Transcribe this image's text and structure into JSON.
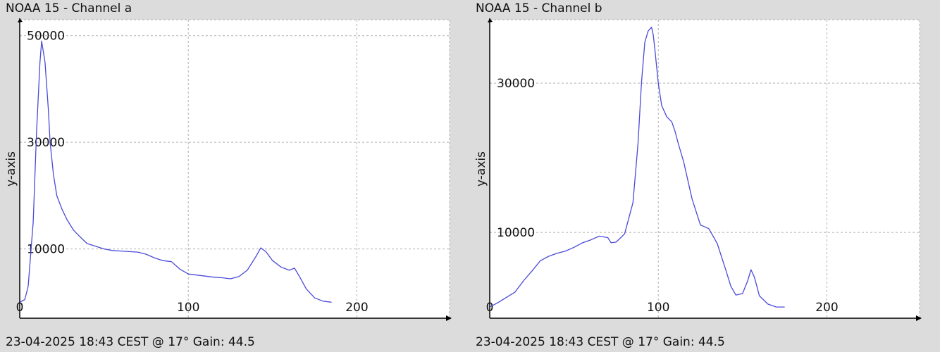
{
  "chart_data": [
    {
      "type": "line",
      "title": "NOAA 15 - Channel a",
      "footer": "23-04-2025 18:43 CEST @ 17° Gain: 44.5",
      "xlabel": "",
      "ylabel": "y-axis",
      "xlim": [
        0,
        255
      ],
      "ylim": [
        -3000,
        53000
      ],
      "grid": true,
      "line_color": "#4a4ad8",
      "xticks": [
        0,
        100,
        200
      ],
      "yticks": [
        10000,
        30000,
        50000
      ],
      "series": [
        {
          "x": [
            0,
            3,
            5,
            8,
            10,
            12,
            13,
            15,
            17,
            18,
            20,
            22,
            25,
            28,
            32,
            36,
            40,
            45,
            50,
            55,
            60,
            65,
            70,
            75,
            80,
            85,
            90,
            95,
            100,
            105,
            110,
            115,
            120,
            125,
            130,
            135,
            140,
            143,
            146,
            150,
            155,
            160,
            163,
            166,
            170,
            175,
            180,
            185
          ],
          "y": [
            0,
            500,
            3000,
            15000,
            32000,
            45000,
            49000,
            45000,
            36000,
            30000,
            24000,
            20000,
            17500,
            15500,
            13500,
            12200,
            11000,
            10500,
            10000,
            9700,
            9600,
            9500,
            9400,
            9000,
            8300,
            7800,
            7600,
            6200,
            5300,
            5100,
            4900,
            4700,
            4600,
            4400,
            4800,
            6000,
            8500,
            10200,
            9500,
            7800,
            6600,
            6000,
            6400,
            4800,
            2500,
            800,
            200,
            0
          ]
        }
      ]
    },
    {
      "type": "line",
      "title": "NOAA 15 - Channel b",
      "footer": "23-04-2025 18:43 CEST @ 17° Gain: 44.5",
      "xlabel": "",
      "ylabel": "y-axis",
      "xlim": [
        0,
        255
      ],
      "ylim": [
        -1500,
        38500
      ],
      "grid": true,
      "line_color": "#4a4ad8",
      "xticks": [
        0,
        100,
        200
      ],
      "yticks": [
        10000,
        30000
      ],
      "series": [
        {
          "x": [
            0,
            5,
            10,
            15,
            20,
            25,
            30,
            35,
            40,
            45,
            50,
            55,
            60,
            65,
            70,
            72,
            75,
            80,
            85,
            88,
            90,
            92,
            94,
            96,
            97,
            98,
            100,
            102,
            105,
            108,
            110,
            112,
            115,
            118,
            120,
            125,
            130,
            135,
            140,
            143,
            146,
            150,
            153,
            155,
            157,
            160,
            165,
            170,
            175
          ],
          "y": [
            0,
            600,
            1300,
            2000,
            3500,
            4800,
            6200,
            6800,
            7200,
            7500,
            8000,
            8600,
            9000,
            9500,
            9300,
            8600,
            8700,
            9800,
            14000,
            22000,
            30000,
            35500,
            37000,
            37500,
            36500,
            34500,
            30000,
            27000,
            25500,
            24800,
            23500,
            21800,
            19500,
            16500,
            14500,
            11000,
            10500,
            8500,
            5000,
            2800,
            1600,
            1800,
            3500,
            5000,
            4000,
            1500,
            400,
            0,
            0
          ]
        }
      ]
    }
  ]
}
